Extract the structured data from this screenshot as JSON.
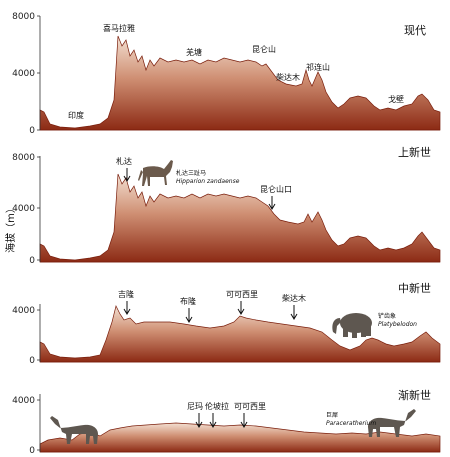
{
  "y_axis_label": "海拔（m）",
  "y_ticks": [
    "0",
    "4000",
    "8000"
  ],
  "panels": [
    {
      "era": "现代",
      "places": [
        "印度",
        "喜马拉雅",
        "羌塘",
        "昆仑山",
        "柴达木",
        "祁连山",
        "戈壁"
      ]
    },
    {
      "era": "上新世",
      "places": [
        "札达",
        "昆仑山口"
      ],
      "animal_caption": "札达三趾马",
      "animal_latin": "Hipparion zandaense"
    },
    {
      "era": "中新世",
      "places": [
        "吉隆",
        "布隆",
        "可可西里",
        "柴达木"
      ],
      "animal_caption": "铲齿象",
      "animal_latin": "Platybelodon"
    },
    {
      "era": "渐新世",
      "places": [
        "尼玛",
        "伦坡拉",
        "可可西里"
      ],
      "animal_caption": "巨犀",
      "animal_latin": "Paraceratherium"
    }
  ]
}
